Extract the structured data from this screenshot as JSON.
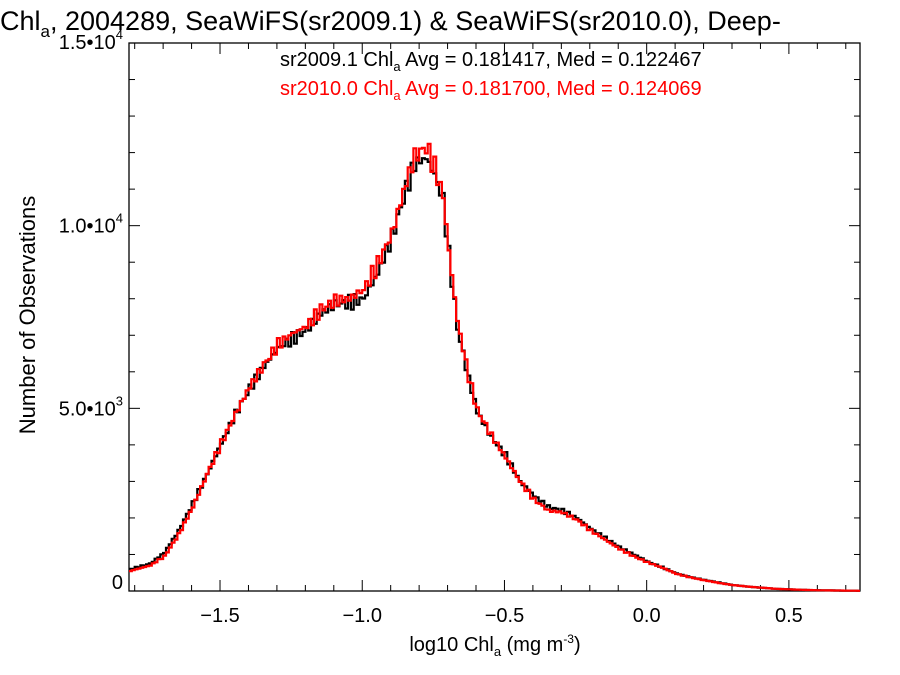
{
  "title": {
    "prefix": "Chl",
    "sub": "a",
    "rest": ", 2004289, SeaWiFS(sr2009.1) & SeaWiFS(sr2010.0), Deep-"
  },
  "colors": {
    "series1": "#000000",
    "series2": "#ff0000",
    "axis": "#000000",
    "background": "#ffffff"
  },
  "legend": {
    "line1": {
      "pre": "sr2009.1 Chl",
      "sub": "a",
      "post": " Avg = 0.181417, Med = 0.122467"
    },
    "line2": {
      "pre": "sr2010.0 Chl",
      "sub": "a",
      "post": " Avg = 0.181700, Med = 0.124069"
    }
  },
  "axes": {
    "ylabel": "Number of Observations",
    "xlabel": {
      "pre": "log10 Chl",
      "sub": "a",
      "mid": " (mg m",
      "sup": "-3",
      "post": ")"
    },
    "yticks": [
      {
        "value": 0,
        "mant": "0",
        "exp": ""
      },
      {
        "value": 5000,
        "mant": "5.0•10",
        "exp": "3"
      },
      {
        "value": 10000,
        "mant": "1.0•10",
        "exp": "4"
      },
      {
        "value": 15000,
        "mant": "1.5•10",
        "exp": "4"
      }
    ],
    "xticks": [
      {
        "value": -1.5,
        "label": "−1.5"
      },
      {
        "value": -1.0,
        "label": "−1.0"
      },
      {
        "value": -0.5,
        "label": "−0.5"
      },
      {
        "value": 0.0,
        "label": "0.0"
      },
      {
        "value": 0.5,
        "label": "0.5"
      }
    ]
  },
  "chart_data": {
    "type": "line",
    "style": "step",
    "xlabel": "log10 Chl_a (mg m^-3)",
    "ylabel": "Number of Observations",
    "xlim": [
      -1.82,
      0.75
    ],
    "ylim": [
      0,
      15000
    ],
    "x_minor_step": 0.1,
    "y_minor_step": 1000,
    "grid": false,
    "legend_position": "top-right",
    "series": [
      {
        "name": "sr2009.1",
        "color": "#000000",
        "points": [
          [
            -1.82,
            600
          ],
          [
            -1.75,
            750
          ],
          [
            -1.7,
            1050
          ],
          [
            -1.65,
            1650
          ],
          [
            -1.6,
            2400
          ],
          [
            -1.55,
            3200
          ],
          [
            -1.5,
            4050
          ],
          [
            -1.45,
            4850
          ],
          [
            -1.4,
            5550
          ],
          [
            -1.35,
            6150
          ],
          [
            -1.3,
            6650
          ],
          [
            -1.25,
            6900
          ],
          [
            -1.2,
            7150
          ],
          [
            -1.15,
            7600
          ],
          [
            -1.1,
            7850
          ],
          [
            -1.05,
            7900
          ],
          [
            -1.0,
            8000
          ],
          [
            -0.95,
            8700
          ],
          [
            -0.9,
            9700
          ],
          [
            -0.85,
            11000
          ],
          [
            -0.82,
            11700
          ],
          [
            -0.78,
            11850
          ],
          [
            -0.75,
            11400
          ],
          [
            -0.72,
            10700
          ],
          [
            -0.7,
            9200
          ],
          [
            -0.67,
            7200
          ],
          [
            -0.63,
            5800
          ],
          [
            -0.6,
            4900
          ],
          [
            -0.55,
            4200
          ],
          [
            -0.5,
            3700
          ],
          [
            -0.45,
            3000
          ],
          [
            -0.4,
            2600
          ],
          [
            -0.35,
            2300
          ],
          [
            -0.3,
            2200
          ],
          [
            -0.25,
            2000
          ],
          [
            -0.2,
            1700
          ],
          [
            -0.15,
            1450
          ],
          [
            -0.1,
            1200
          ],
          [
            -0.05,
            1000
          ],
          [
            0.0,
            800
          ],
          [
            0.05,
            650
          ],
          [
            0.1,
            480
          ],
          [
            0.15,
            380
          ],
          [
            0.2,
            300
          ],
          [
            0.25,
            230
          ],
          [
            0.3,
            160
          ],
          [
            0.35,
            120
          ],
          [
            0.4,
            90
          ],
          [
            0.45,
            60
          ],
          [
            0.5,
            45
          ],
          [
            0.55,
            30
          ],
          [
            0.6,
            20
          ],
          [
            0.65,
            15
          ],
          [
            0.7,
            10
          ],
          [
            0.75,
            5
          ]
        ]
      },
      {
        "name": "sr2010.0",
        "color": "#ff0000",
        "points": [
          [
            -1.82,
            550
          ],
          [
            -1.75,
            700
          ],
          [
            -1.7,
            950
          ],
          [
            -1.65,
            1550
          ],
          [
            -1.6,
            2300
          ],
          [
            -1.55,
            3200
          ],
          [
            -1.5,
            4050
          ],
          [
            -1.45,
            4850
          ],
          [
            -1.4,
            5600
          ],
          [
            -1.35,
            6200
          ],
          [
            -1.3,
            6750
          ],
          [
            -1.25,
            7050
          ],
          [
            -1.2,
            7250
          ],
          [
            -1.15,
            7700
          ],
          [
            -1.1,
            7950
          ],
          [
            -1.05,
            8000
          ],
          [
            -1.0,
            8250
          ],
          [
            -0.95,
            8950
          ],
          [
            -0.9,
            9800
          ],
          [
            -0.85,
            11200
          ],
          [
            -0.82,
            11900
          ],
          [
            -0.78,
            12150
          ],
          [
            -0.75,
            11600
          ],
          [
            -0.72,
            10800
          ],
          [
            -0.7,
            9300
          ],
          [
            -0.67,
            7400
          ],
          [
            -0.63,
            5850
          ],
          [
            -0.6,
            4950
          ],
          [
            -0.55,
            4250
          ],
          [
            -0.5,
            3650
          ],
          [
            -0.45,
            3000
          ],
          [
            -0.4,
            2500
          ],
          [
            -0.35,
            2200
          ],
          [
            -0.3,
            2150
          ],
          [
            -0.25,
            1950
          ],
          [
            -0.2,
            1650
          ],
          [
            -0.15,
            1400
          ],
          [
            -0.1,
            1150
          ],
          [
            -0.05,
            950
          ],
          [
            0.0,
            780
          ],
          [
            0.05,
            640
          ],
          [
            0.1,
            470
          ],
          [
            0.15,
            370
          ],
          [
            0.2,
            290
          ],
          [
            0.25,
            220
          ],
          [
            0.3,
            160
          ],
          [
            0.35,
            120
          ],
          [
            0.4,
            90
          ],
          [
            0.45,
            60
          ],
          [
            0.5,
            45
          ],
          [
            0.55,
            30
          ],
          [
            0.6,
            20
          ],
          [
            0.65,
            15
          ],
          [
            0.7,
            10
          ],
          [
            0.75,
            5
          ]
        ]
      }
    ]
  }
}
